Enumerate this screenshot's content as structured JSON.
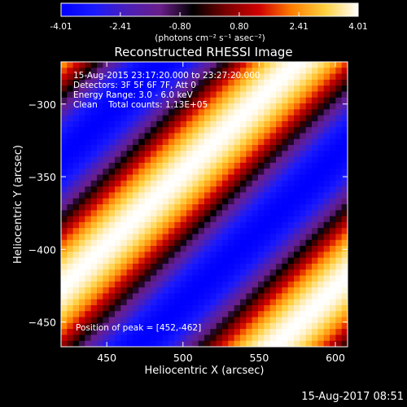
{
  "chart_data": {
    "type": "heatmap",
    "title": "Reconstructed RHESSI Image",
    "xlabel": "Heliocentric X (arcsec)",
    "ylabel": "Heliocentric Y (arcsec)",
    "xlim": [
      420,
      608
    ],
    "ylim": [
      -467,
      -271
    ],
    "xticks": [
      450,
      500,
      550,
      600
    ],
    "yticks": [
      -300,
      -350,
      -400,
      -450
    ],
    "xtick_labels": [
      "450",
      "500",
      "550",
      "600"
    ],
    "ytick_labels": [
      "−300",
      "−350",
      "−400",
      "−450"
    ],
    "colorbar": {
      "min": -4.01,
      "max": 4.01,
      "ticks": [
        -4.01,
        -2.41,
        -0.8,
        0.8,
        2.41,
        4.01
      ],
      "tick_labels": [
        "-4.01",
        "-2.41",
        "-0.80",
        "0.80",
        "2.41",
        "4.01"
      ],
      "units_label": "(photons cm⁻² s⁻¹ asec⁻²)",
      "colormap": [
        "#0000ff",
        "#1a1aff",
        "#4b1fb8",
        "#6a1e8a",
        "#000000",
        "#7a0000",
        "#d00000",
        "#ff7f00",
        "#ffd040",
        "#ffffff"
      ]
    },
    "pattern": {
      "description_free_values": true,
      "direction_deg": 45,
      "period_arcsec": 127,
      "phase_ref": [
        497,
        -350
      ],
      "extremes": [
        -4.01,
        4.01
      ]
    },
    "annotations": [
      "15-Aug-2015 23:17:20.000 to 23:27:20.000",
      "Detectors: 3F 5F 6F 7F, Att 0",
      "Energy Range: 3.0 - 6.0 keV",
      "Clean    Total counts: 1.13E+05",
      "Position of peak = [452,-462]"
    ]
  },
  "footer": {
    "timestamp": "15-Aug-2017 08:51"
  }
}
